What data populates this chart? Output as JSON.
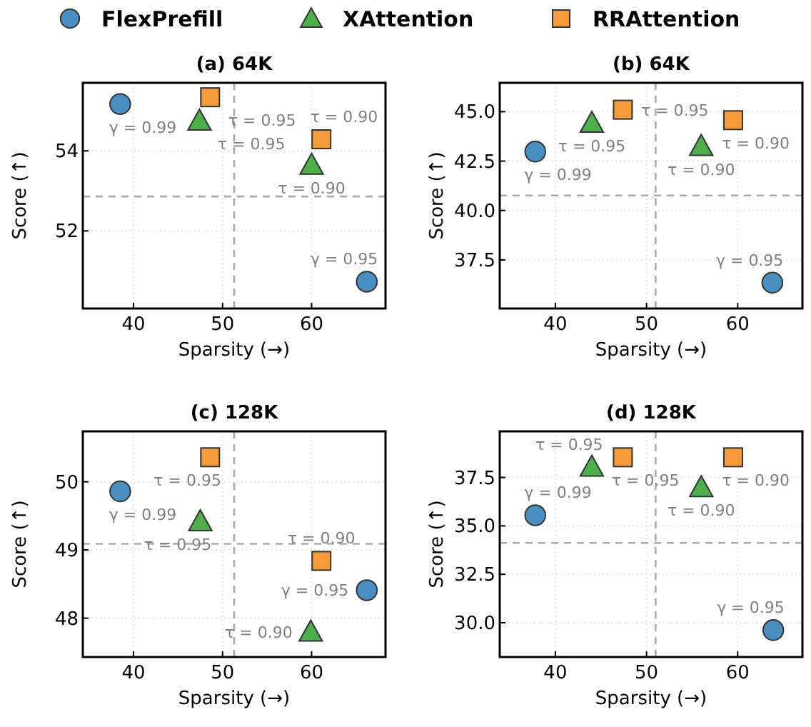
{
  "chart_data": [
    {
      "type": "scatter",
      "title": "(a) 64K",
      "xlabel": "Sparsity (→)",
      "ylabel": "Score (↑)",
      "xlim": [
        34.3,
        68.3
      ],
      "ylim": [
        50.06,
        55.7
      ],
      "xticks": [
        40,
        50,
        60
      ],
      "yticks": [
        52,
        54
      ],
      "grid": true,
      "legend": "top",
      "series": [
        {
          "name": "FlexPrefill",
          "color": "#4a8fc2",
          "marker": "circle",
          "x": [
            38.5,
            66.2
          ],
          "values": [
            55.17,
            50.73
          ]
        },
        {
          "name": "XAttention",
          "color": "#4daf4a",
          "marker": "triangle",
          "x": [
            47.4,
            60.0
          ],
          "values": [
            54.75,
            53.65
          ]
        },
        {
          "name": "RRAttention",
          "color": "#f79a3a",
          "marker": "square",
          "x": [
            48.6,
            61.1
          ],
          "values": [
            55.34,
            54.29
          ]
        }
      ],
      "ref_lines": [
        {
          "axis": "x",
          "value": 51.3,
          "color": "#aaaaaa",
          "line_style": "dashed"
        },
        {
          "axis": "y",
          "value": 52.86,
          "color": "#aaaaaa",
          "line_style": "dashed"
        }
      ],
      "annotations": [
        {
          "text": "γ = 0.99",
          "x": 38.5,
          "y": 55.17
        },
        {
          "text": "γ = 0.95",
          "x": 66.2,
          "y": 50.73
        },
        {
          "text": "τ = 0.95",
          "x": 47.4,
          "y": 54.75
        },
        {
          "text": "τ = 0.90",
          "x": 60.0,
          "y": 53.65
        },
        {
          "text": "τ = 0.95",
          "x": 48.6,
          "y": 55.34
        },
        {
          "text": "τ = 0.90",
          "x": 61.1,
          "y": 54.29
        }
      ]
    },
    {
      "type": "scatter",
      "title": "(b) 64K",
      "xlabel": "Sparsity (→)",
      "ylabel": "Score (↑)",
      "xlim": [
        33.9,
        67.1
      ],
      "ylim": [
        35.04,
        46.46
      ],
      "xticks": [
        40,
        50,
        60
      ],
      "yticks": [
        {
          "value": 37.5,
          "label": "37.5"
        },
        {
          "value": 40,
          "label": "40.0"
        },
        {
          "value": 42.5,
          "label": "42.5"
        },
        {
          "value": 45,
          "label": "45.0"
        }
      ],
      "grid": true,
      "series": [
        {
          "name": "FlexPrefill",
          "color": "#4a8fc2",
          "marker": "circle",
          "x": [
            37.8,
            63.8
          ],
          "values": [
            42.98,
            36.35
          ]
        },
        {
          "name": "XAttention",
          "color": "#4daf4a",
          "marker": "triangle",
          "x": [
            44.0,
            56.0
          ],
          "values": [
            44.43,
            43.26
          ]
        },
        {
          "name": "RRAttention",
          "color": "#f79a3a",
          "marker": "square",
          "x": [
            47.4,
            59.5
          ],
          "values": [
            45.1,
            44.57
          ]
        }
      ],
      "ref_lines": [
        {
          "axis": "x",
          "value": 51.0,
          "color": "#aaaaaa",
          "line_style": "dashed"
        },
        {
          "axis": "y",
          "value": 40.76,
          "color": "#aaaaaa",
          "line_style": "dashed"
        }
      ],
      "annotations": [
        {
          "text": "γ = 0.99",
          "x": 37.8,
          "y": 42.98
        },
        {
          "text": "γ = 0.95",
          "x": 63.8,
          "y": 36.35
        },
        {
          "text": "τ = 0.95",
          "x": 44.0,
          "y": 44.43
        },
        {
          "text": "τ = 0.90",
          "x": 56.0,
          "y": 43.26
        },
        {
          "text": "τ = 0.95",
          "x": 47.4,
          "y": 45.1
        },
        {
          "text": "τ = 0.90",
          "x": 59.5,
          "y": 44.57
        }
      ]
    },
    {
      "type": "scatter",
      "title": "(c) 128K",
      "xlabel": "Sparsity (→)",
      "ylabel": "Score (↑)",
      "xlim": [
        34.3,
        68.3
      ],
      "ylim": [
        47.43,
        50.74
      ],
      "xticks": [
        40,
        50,
        60
      ],
      "yticks": [
        48,
        49,
        50
      ],
      "grid": true,
      "series": [
        {
          "name": "FlexPrefill",
          "color": "#4a8fc2",
          "marker": "circle",
          "x": [
            38.5,
            66.2
          ],
          "values": [
            49.86,
            48.41
          ]
        },
        {
          "name": "XAttention",
          "color": "#4daf4a",
          "marker": "triangle",
          "x": [
            47.5,
            59.9
          ],
          "values": [
            49.42,
            47.8
          ]
        },
        {
          "name": "RRAttention",
          "color": "#f79a3a",
          "marker": "square",
          "x": [
            48.6,
            61.1
          ],
          "values": [
            50.36,
            48.84
          ]
        }
      ],
      "ref_lines": [
        {
          "axis": "x",
          "value": 51.3,
          "color": "#aaaaaa",
          "line_style": "dashed"
        },
        {
          "axis": "y",
          "value": 49.09,
          "color": "#aaaaaa",
          "line_style": "dashed"
        }
      ],
      "annotations": [
        {
          "text": "γ = 0.99",
          "x": 38.5,
          "y": 49.86
        },
        {
          "text": "γ = 0.95",
          "x": 66.2,
          "y": 48.41
        },
        {
          "text": "τ = 0.95",
          "x": 47.5,
          "y": 49.42
        },
        {
          "text": "τ = 0.90",
          "x": 59.9,
          "y": 47.8
        },
        {
          "text": "τ = 0.95",
          "x": 48.6,
          "y": 50.36
        },
        {
          "text": "τ = 0.90",
          "x": 61.1,
          "y": 48.84
        }
      ]
    },
    {
      "type": "scatter",
      "title": "(d) 128K",
      "xlabel": "Sparsity (→)",
      "ylabel": "Score (↑)",
      "xlim": [
        33.9,
        67.1
      ],
      "ylim": [
        28.23,
        39.88
      ],
      "xticks": [
        40,
        50,
        60
      ],
      "yticks": [
        {
          "value": 30,
          "label": "30.0"
        },
        {
          "value": 32.5,
          "label": "32.5"
        },
        {
          "value": 35,
          "label": "35.0"
        },
        {
          "value": 37.5,
          "label": "37.5"
        }
      ],
      "grid": true,
      "series": [
        {
          "name": "FlexPrefill",
          "color": "#4a8fc2",
          "marker": "circle",
          "x": [
            37.8,
            63.9
          ],
          "values": [
            35.55,
            29.62
          ]
        },
        {
          "name": "XAttention",
          "color": "#4daf4a",
          "marker": "triangle",
          "x": [
            44.0,
            56.0
          ],
          "values": [
            38.05,
            36.99
          ]
        },
        {
          "name": "RRAttention",
          "color": "#f79a3a",
          "marker": "square",
          "x": [
            47.4,
            59.5
          ],
          "values": [
            38.54,
            38.54
          ]
        }
      ],
      "ref_lines": [
        {
          "axis": "x",
          "value": 51.0,
          "color": "#aaaaaa",
          "line_style": "dashed"
        },
        {
          "axis": "y",
          "value": 34.12,
          "color": "#aaaaaa",
          "line_style": "dashed"
        }
      ],
      "annotations": [
        {
          "text": "γ = 0.99",
          "x": 37.8,
          "y": 35.55
        },
        {
          "text": "γ = 0.95",
          "x": 63.9,
          "y": 29.62
        },
        {
          "text": "τ = 0.95",
          "x": 44.0,
          "y": 38.05
        },
        {
          "text": "τ = 0.90",
          "x": 56.0,
          "y": 36.99
        },
        {
          "text": "τ = 0.95",
          "x": 47.4,
          "y": 38.54
        },
        {
          "text": "τ = 0.90",
          "x": 59.5,
          "y": 38.54
        }
      ]
    }
  ]
}
